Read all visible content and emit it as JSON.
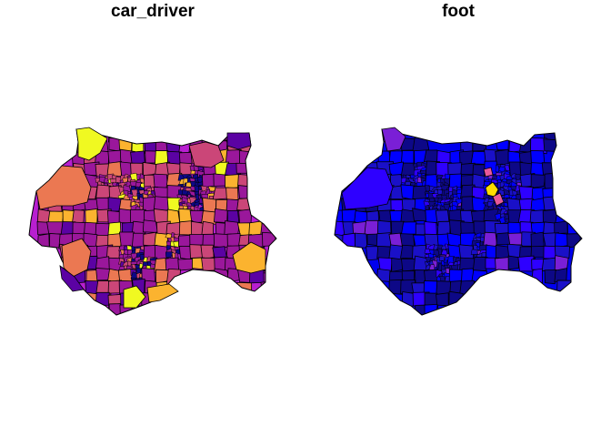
{
  "panels": [
    {
      "title": "car_driver",
      "palette": [
        "#0d0887",
        "#5b02a3",
        "#9a179b",
        "#cb4678",
        "#eb7852",
        "#fbb32f",
        "#f0f921"
      ],
      "base_color": "#b81fd1"
    },
    {
      "title": "foot",
      "palette": [
        "#0d0887",
        "#1a10c8",
        "#0000ff",
        "#2e00ff",
        "#7a1fd6",
        "#e8589a",
        "#ffdd00"
      ],
      "base_color": "#0000ee"
    }
  ],
  "colors": {
    "outline": "#000000",
    "background": "#ffffff"
  }
}
